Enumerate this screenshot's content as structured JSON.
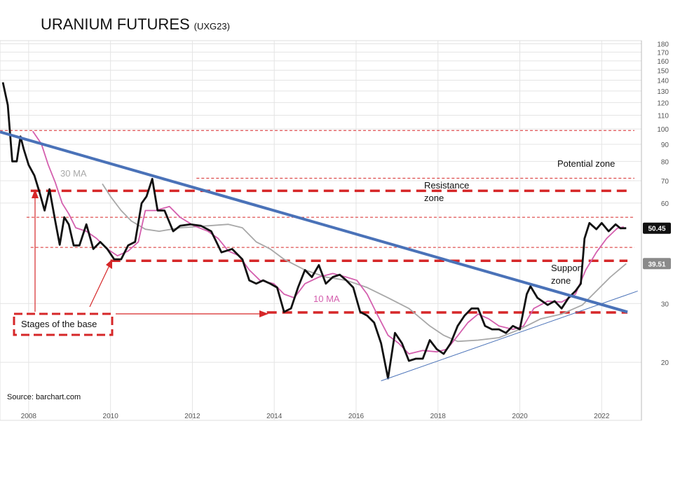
{
  "chart_data": {
    "type": "line",
    "title": "URANIUM FUTURES",
    "subtitle": "(UXG23)",
    "source": "Source: barchart.com",
    "log_scale": true,
    "grid": true,
    "xlim": [
      2007.3,
      2022.8
    ],
    "xticks": [
      2008,
      2010,
      2012,
      2014,
      2016,
      2018,
      2020,
      2022
    ],
    "ylim": [
      13.4,
      184
    ],
    "yticks": [
      20,
      30,
      60,
      70,
      80,
      90,
      100,
      110,
      120,
      130,
      140,
      150,
      160,
      170,
      180
    ],
    "series": [
      {
        "color": "#111111",
        "x": [
          2007.37,
          2007.49,
          2007.6,
          2007.71,
          2007.8,
          2007.88,
          2008.0,
          2008.14,
          2008.27,
          2008.39,
          2008.51,
          2008.65,
          2008.76,
          2008.87,
          2008.98,
          2009.1,
          2009.24,
          2009.41,
          2009.58,
          2009.75,
          2009.92,
          2010.09,
          2010.26,
          2010.43,
          2010.6,
          2010.76,
          2010.88,
          2011.02,
          2011.15,
          2011.32,
          2011.53,
          2011.7,
          2011.95,
          2012.21,
          2012.46,
          2012.71,
          2012.97,
          2013.22,
          2013.39,
          2013.56,
          2013.73,
          2013.9,
          2014.07,
          2014.24,
          2014.41,
          2014.58,
          2014.75,
          2014.92,
          2015.09,
          2015.26,
          2015.43,
          2015.6,
          2015.76,
          2015.93,
          2016.1,
          2016.27,
          2016.44,
          2016.61,
          2016.78,
          2016.95,
          2017.12,
          2017.29,
          2017.46,
          2017.63,
          2017.8,
          2017.97,
          2018.14,
          2018.31,
          2018.48,
          2018.65,
          2018.82,
          2018.98,
          2019.15,
          2019.32,
          2019.49,
          2019.66,
          2019.83,
          2020.0,
          2020.17,
          2020.26,
          2020.43,
          2020.68,
          2020.85,
          2021.02,
          2021.19,
          2021.36,
          2021.49,
          2021.58,
          2021.7,
          2021.87,
          2022.0,
          2022.17,
          2022.34,
          2022.46,
          2022.6
        ],
        "values": [
          138,
          118,
          80,
          80,
          95,
          87,
          78,
          72.6,
          64.4,
          57,
          66,
          53,
          45,
          54.4,
          51.8,
          44.8,
          44.8,
          51.8,
          43.7,
          45.9,
          43.7,
          40.7,
          40.7,
          44.8,
          45.9,
          59.9,
          62.8,
          70.9,
          57,
          57,
          49.4,
          51.3,
          51.8,
          51.3,
          49.4,
          42.7,
          43.7,
          40.7,
          35.2,
          34.4,
          35.2,
          34.4,
          33.5,
          28.3,
          29,
          33.5,
          37.8,
          36,
          39.1,
          34.4,
          36,
          36.6,
          35.2,
          33.5,
          28.3,
          27.6,
          26.3,
          22.8,
          17.9,
          24.5,
          22.8,
          20.2,
          20.5,
          20.5,
          23.3,
          21.9,
          21.2,
          22.8,
          25.7,
          27.6,
          29,
          29,
          25.7,
          25.1,
          25.1,
          24.5,
          25.7,
          25.1,
          32,
          33.8,
          31.2,
          29.7,
          30.5,
          29,
          31.2,
          32.7,
          34.4,
          47,
          52.3,
          50.1,
          52.3,
          49.4,
          51.8,
          50.4,
          50.45
        ]
      },
      {
        "name": "10 MA",
        "color": "#d45fae",
        "x": [
          2008.1,
          2008.31,
          2008.48,
          2008.65,
          2008.82,
          2008.98,
          2009.15,
          2009.41,
          2009.66,
          2009.92,
          2010.17,
          2010.43,
          2010.68,
          2010.85,
          2011.1,
          2011.44,
          2011.7,
          2012.04,
          2012.38,
          2012.63,
          2012.88,
          2013.14,
          2013.39,
          2013.65,
          2013.99,
          2014.24,
          2014.49,
          2014.75,
          2015.09,
          2015.43,
          2015.76,
          2016.02,
          2016.27,
          2016.53,
          2016.78,
          2017.04,
          2017.29,
          2017.63,
          2017.97,
          2018.22,
          2018.48,
          2018.73,
          2018.98,
          2019.24,
          2019.49,
          2019.83,
          2020.09,
          2020.34,
          2020.68,
          2021.02,
          2021.36,
          2021.61,
          2021.87,
          2022.12,
          2022.38,
          2022.54
        ],
        "values": [
          98.5,
          90.3,
          78,
          69.2,
          59.9,
          55.7,
          50.6,
          49.4,
          47,
          43.7,
          41.7,
          43.1,
          45.9,
          57,
          57,
          58.6,
          54.4,
          51.3,
          49.4,
          47,
          43.1,
          41.7,
          37.8,
          35.2,
          34.4,
          32,
          31.2,
          34.4,
          36,
          36.9,
          36,
          35.2,
          32,
          27.6,
          24.1,
          22.8,
          21.2,
          21.7,
          21.5,
          21.9,
          24,
          26.3,
          27.9,
          27,
          25.7,
          25.1,
          25.7,
          29,
          30.5,
          30.3,
          32,
          37.8,
          42.7,
          47,
          50.4,
          50.9
        ]
      },
      {
        "name": "30 MA",
        "color": "#a8a8a8",
        "x": [
          2009.8,
          2010.0,
          2010.26,
          2010.51,
          2010.85,
          2011.19,
          2011.7,
          2012.38,
          2012.88,
          2013.22,
          2013.56,
          2013.9,
          2014.24,
          2014.75,
          2015.26,
          2015.76,
          2016.27,
          2016.78,
          2017.29,
          2017.8,
          2018.14,
          2018.48,
          2018.98,
          2019.49,
          2020.0,
          2020.51,
          2021.02,
          2021.53,
          2021.87,
          2022.21,
          2022.6
        ],
        "values": [
          68.5,
          62.8,
          57,
          53,
          50.1,
          49.4,
          50.6,
          51.3,
          51.8,
          50.6,
          45.9,
          43.7,
          40.7,
          37.8,
          36,
          35.2,
          33.5,
          31.2,
          29,
          25.7,
          24.1,
          23.1,
          23.3,
          23.7,
          25.1,
          27,
          27.9,
          29.7,
          32.7,
          36,
          39.5
        ]
      }
    ],
    "price_tags": [
      {
        "value": 50.45,
        "color": "#111111"
      },
      {
        "value": 39.51,
        "color": "#8a8a8a"
      }
    ],
    "levels": [
      {
        "value": 65.3,
        "from": 2008.05,
        "to": 2022.63,
        "style": "thick"
      },
      {
        "value": 40.3,
        "from": 2010.0,
        "to": 2022.63,
        "style": "thick"
      },
      {
        "value": 28.2,
        "from": 2013.82,
        "to": 2022.63,
        "style": "thick"
      },
      {
        "value": 99,
        "from": 2007.3,
        "to": 2022.8,
        "style": "thin"
      },
      {
        "value": 71.2,
        "from": 2012.1,
        "to": 2022.8,
        "style": "thin"
      },
      {
        "value": 54.4,
        "from": 2007.95,
        "to": 2022.8,
        "style": "thin"
      },
      {
        "value": 44.2,
        "from": 2008.05,
        "to": 2022.8,
        "style": "thin"
      }
    ],
    "trendlines": [
      {
        "x": [
          2007.3,
          2022.63
        ],
        "values": [
          98,
          28.3
        ],
        "color": "#4a72b8",
        "width": 4
      },
      {
        "x": [
          2016.61,
          2022.88
        ],
        "values": [
          17.6,
          32.7
        ],
        "color": "#4a72b8",
        "width": 1
      }
    ],
    "annotations": [
      "Potential zone",
      "Resistance zone",
      "Support zone",
      "Stages of the base"
    ]
  }
}
